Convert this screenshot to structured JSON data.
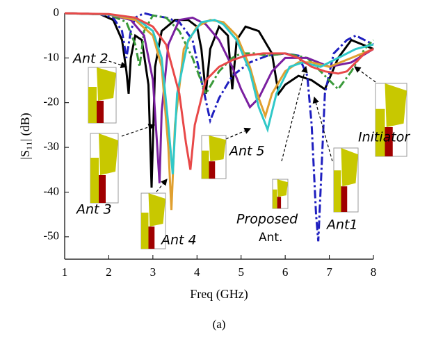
{
  "chart_data": {
    "type": "line",
    "x_label": "Freq (GHz)",
    "y_label": "|S₁₁| (dB)",
    "caption": "(a)",
    "xlim": [
      1,
      8
    ],
    "xticks": [
      1,
      2,
      3,
      4,
      5,
      6,
      7,
      8
    ],
    "ylim": [
      -55,
      0
    ],
    "yticks": [
      0,
      -10,
      -20,
      -30,
      -40,
      -50
    ],
    "series": [
      {
        "color": "#000000",
        "dash": "solid",
        "x": [
          1,
          1.8,
          2.1,
          2.3,
          2.4,
          2.45,
          2.5,
          2.6,
          2.75,
          2.9,
          2.97,
          3.05,
          3.2,
          3.5,
          3.8,
          4.0,
          4.1,
          4.2,
          4.3,
          4.5,
          4.7,
          4.8,
          4.9,
          5.1,
          5.4,
          5.7,
          5.85,
          6.0,
          6.3,
          6.6,
          6.9,
          7.2,
          7.5,
          8
        ],
        "values": [
          0,
          -0.2,
          -1.5,
          -6,
          -13,
          -18,
          -10,
          -5,
          -6,
          -16,
          -39,
          -12,
          -4,
          -1.5,
          -1.5,
          -3,
          -8,
          -18,
          -8,
          -3,
          -5,
          -17,
          -6,
          -3,
          -4,
          -9,
          -18,
          -16,
          -14,
          -15,
          -17,
          -10,
          -6,
          -8
        ]
      },
      {
        "color": "#1f1fbf",
        "dash": "dashdot",
        "x": [
          1,
          1.8,
          2.1,
          2.3,
          2.4,
          2.5,
          2.6,
          2.8,
          3.0,
          3.3,
          3.6,
          3.9,
          4.1,
          4.3,
          4.5,
          4.8,
          5.2,
          5.6,
          6.0,
          6.3,
          6.5,
          6.6,
          6.7,
          6.75,
          6.8,
          6.9,
          7.1,
          7.4,
          7.6,
          8
        ],
        "values": [
          0,
          -0.2,
          -1,
          -4,
          -10,
          -4,
          -1,
          0,
          -0.5,
          -1,
          -2,
          -6,
          -15,
          -24,
          -19,
          -14,
          -11,
          -9.5,
          -9,
          -9.5,
          -14,
          -25,
          -45,
          -51,
          -40,
          -18,
          -9,
          -6,
          -5,
          -7
        ]
      },
      {
        "color": "#3a9a3a",
        "dash": "dashdot",
        "x": [
          1,
          2.0,
          2.4,
          2.6,
          2.7,
          2.8,
          3.0,
          3.3,
          3.6,
          3.9,
          4.2,
          4.5,
          4.8,
          5.0,
          5.3,
          5.6,
          6.0,
          6.5,
          7.0,
          7.2,
          7.5,
          7.8,
          8
        ],
        "values": [
          0,
          -0.3,
          -2,
          -7,
          -12,
          -4,
          -0.5,
          -1,
          -4,
          -10,
          -18,
          -13,
          -10,
          -9,
          -9,
          -9.5,
          -9,
          -10,
          -15,
          -17,
          -13,
          -8,
          -6
        ]
      },
      {
        "color": "#7a1fa0",
        "dash": "solid",
        "x": [
          1,
          2.0,
          2.5,
          2.8,
          3.0,
          3.1,
          3.15,
          3.2,
          3.35,
          3.6,
          3.9,
          4.2,
          4.5,
          4.8,
          5.0,
          5.2,
          5.4,
          5.7,
          6.0,
          6.5,
          7.0,
          7.5,
          8
        ],
        "values": [
          0,
          -0.3,
          -1.5,
          -5,
          -15,
          -30,
          -38,
          -22,
          -7,
          -1.5,
          -1,
          -2.5,
          -6,
          -12,
          -17,
          -21,
          -19,
          -13,
          -10,
          -10,
          -12,
          -11,
          -8
        ]
      },
      {
        "color": "#e0a030",
        "dash": "solid",
        "x": [
          1,
          2.0,
          2.6,
          3.0,
          3.2,
          3.35,
          3.42,
          3.5,
          3.7,
          4.0,
          4.3,
          4.6,
          4.9,
          5.2,
          5.4,
          5.55,
          5.7,
          6.0,
          6.3,
          6.6,
          7.0,
          7.5,
          8
        ],
        "values": [
          0,
          -0.3,
          -1.5,
          -5,
          -12,
          -30,
          -44,
          -25,
          -8,
          -3,
          -1.5,
          -2,
          -5,
          -12,
          -19,
          -23,
          -18,
          -13,
          -11,
          -11,
          -12,
          -10,
          -8
        ]
      },
      {
        "color": "#30c8c8",
        "dash": "solid",
        "x": [
          1,
          2.0,
          2.6,
          3.0,
          3.2,
          3.35,
          3.45,
          3.55,
          3.8,
          4.1,
          4.4,
          4.6,
          4.9,
          5.2,
          5.4,
          5.6,
          5.8,
          6.1,
          6.4,
          6.8,
          7.2,
          7.6,
          8
        ],
        "values": [
          0,
          -0.3,
          -1,
          -4,
          -10,
          -25,
          -36,
          -18,
          -6,
          -2,
          -1.5,
          -2.5,
          -6,
          -13,
          -21,
          -26,
          -18,
          -12,
          -11,
          -12,
          -10,
          -8,
          -7
        ]
      },
      {
        "color": "#e84848",
        "dash": "solid",
        "x": [
          1,
          2.0,
          2.6,
          3.0,
          3.3,
          3.6,
          3.75,
          3.85,
          3.95,
          4.2,
          4.5,
          4.8,
          5.1,
          5.5,
          6.0,
          6.3,
          6.6,
          6.9,
          7.2,
          7.4,
          7.6,
          7.8,
          8
        ],
        "values": [
          0,
          -0.2,
          -1,
          -3,
          -7,
          -18,
          -29,
          -35,
          -25,
          -15,
          -12,
          -10.5,
          -9.5,
          -9,
          -9,
          -10,
          -12,
          -13,
          -13.5,
          -13,
          -11,
          -9,
          -8
        ]
      }
    ],
    "annotations": [
      "Ant 2",
      "Ant 3",
      "Ant 4",
      "Ant 5",
      "Proposed",
      "Ant.",
      "Ant1",
      "Initiator"
    ]
  }
}
